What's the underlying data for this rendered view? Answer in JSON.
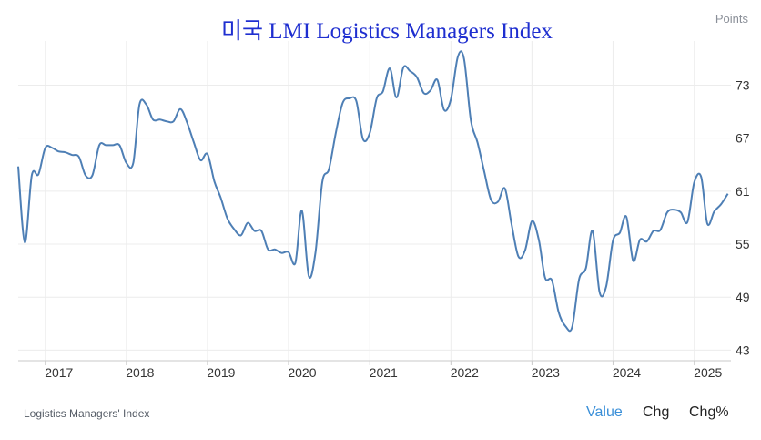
{
  "header": {
    "title": "미국 LMI Logistics Managers Index",
    "units": "Points"
  },
  "footer": {
    "source": "Logistics Managers' Index",
    "toggles": {
      "value": "Value",
      "chg": "Chg",
      "chgpct": "Chg%"
    }
  },
  "colors": {
    "line": "#4e7fb5",
    "title": "#1f2fd0",
    "active_toggle": "#3a8fd8",
    "grid": "#ececec"
  },
  "chart_data": {
    "type": "line",
    "title": "미국 LMI Logistics Managers Index",
    "ylabel": "Points",
    "ylim": [
      41.8,
      78
    ],
    "xlim": [
      "2016-09-01",
      "2025-06-15"
    ],
    "y_ticks": [
      43,
      49,
      55,
      61,
      67,
      73
    ],
    "x_ticks": [
      "2017",
      "2018",
      "2019",
      "2020",
      "2021",
      "2022",
      "2023",
      "2024",
      "2025"
    ],
    "grid": true,
    "legend": "none",
    "series": [
      {
        "values": [
          [
            "2016-09-01",
            63.8
          ],
          [
            "2016-10-01",
            55.2
          ],
          [
            "2016-11-01",
            62.8
          ],
          [
            "2016-12-01",
            62.9
          ],
          [
            "2017-01-01",
            65.9
          ],
          [
            "2017-02-01",
            65.9
          ],
          [
            "2017-03-01",
            65.5
          ],
          [
            "2017-04-01",
            65.4
          ],
          [
            "2017-05-01",
            65.1
          ],
          [
            "2017-06-01",
            64.9
          ],
          [
            "2017-07-01",
            62.8
          ],
          [
            "2017-08-01",
            62.8
          ],
          [
            "2017-09-01",
            66.2
          ],
          [
            "2017-10-01",
            66.2
          ],
          [
            "2017-11-01",
            66.2
          ],
          [
            "2017-12-01",
            66.2
          ],
          [
            "2018-01-01",
            64.2
          ],
          [
            "2018-02-01",
            64.2
          ],
          [
            "2018-03-01",
            70.8
          ],
          [
            "2018-04-01",
            70.8
          ],
          [
            "2018-05-01",
            69.1
          ],
          [
            "2018-06-01",
            69.1
          ],
          [
            "2018-07-01",
            68.9
          ],
          [
            "2018-08-01",
            68.9
          ],
          [
            "2018-09-01",
            70.3
          ],
          [
            "2018-10-01",
            68.8
          ],
          [
            "2018-11-01",
            66.5
          ],
          [
            "2018-12-01",
            64.5
          ],
          [
            "2019-01-01",
            65.2
          ],
          [
            "2019-02-01",
            62.1
          ],
          [
            "2019-03-01",
            60.3
          ],
          [
            "2019-04-01",
            57.9
          ],
          [
            "2019-05-01",
            56.7
          ],
          [
            "2019-06-01",
            56.0
          ],
          [
            "2019-07-01",
            57.4
          ],
          [
            "2019-08-01",
            56.5
          ],
          [
            "2019-09-01",
            56.5
          ],
          [
            "2019-10-01",
            54.4
          ],
          [
            "2019-11-01",
            54.4
          ],
          [
            "2019-12-01",
            54.0
          ],
          [
            "2020-01-01",
            54.1
          ],
          [
            "2020-02-01",
            52.9
          ],
          [
            "2020-03-01",
            58.8
          ],
          [
            "2020-04-01",
            51.4
          ],
          [
            "2020-05-01",
            54.0
          ],
          [
            "2020-06-01",
            62.0
          ],
          [
            "2020-07-01",
            63.5
          ],
          [
            "2020-08-01",
            67.6
          ],
          [
            "2020-09-01",
            71.0
          ],
          [
            "2020-10-01",
            71.5
          ],
          [
            "2020-11-01",
            71.2
          ],
          [
            "2020-12-01",
            66.9
          ],
          [
            "2021-01-01",
            67.6
          ],
          [
            "2021-02-01",
            71.5
          ],
          [
            "2021-03-01",
            72.3
          ],
          [
            "2021-04-01",
            74.9
          ],
          [
            "2021-05-01",
            71.6
          ],
          [
            "2021-06-01",
            75.0
          ],
          [
            "2021-07-01",
            74.6
          ],
          [
            "2021-08-01",
            73.9
          ],
          [
            "2021-09-01",
            72.1
          ],
          [
            "2021-10-01",
            72.4
          ],
          [
            "2021-11-01",
            73.6
          ],
          [
            "2021-12-01",
            70.2
          ],
          [
            "2022-01-01",
            71.4
          ],
          [
            "2022-02-01",
            76.2
          ],
          [
            "2022-03-01",
            76.0
          ],
          [
            "2022-04-01",
            69.0
          ],
          [
            "2022-05-01",
            66.5
          ],
          [
            "2022-06-01",
            63.1
          ],
          [
            "2022-07-01",
            60.0
          ],
          [
            "2022-08-01",
            59.8
          ],
          [
            "2022-09-01",
            61.3
          ],
          [
            "2022-10-01",
            57.3
          ],
          [
            "2022-11-01",
            53.6
          ],
          [
            "2022-12-01",
            54.3
          ],
          [
            "2023-01-01",
            57.6
          ],
          [
            "2023-02-01",
            55.5
          ],
          [
            "2023-03-01",
            51.2
          ],
          [
            "2023-04-01",
            50.9
          ],
          [
            "2023-05-01",
            47.3
          ],
          [
            "2023-06-01",
            45.7
          ],
          [
            "2023-07-01",
            45.6
          ],
          [
            "2023-08-01",
            51.0
          ],
          [
            "2023-09-01",
            52.3
          ],
          [
            "2023-10-01",
            56.5
          ],
          [
            "2023-11-01",
            49.6
          ],
          [
            "2023-12-01",
            50.2
          ],
          [
            "2024-01-01",
            55.4
          ],
          [
            "2024-02-01",
            56.3
          ],
          [
            "2024-03-01",
            58.1
          ],
          [
            "2024-04-01",
            53.1
          ],
          [
            "2024-05-01",
            55.5
          ],
          [
            "2024-06-01",
            55.3
          ],
          [
            "2024-07-01",
            56.5
          ],
          [
            "2024-08-01",
            56.6
          ],
          [
            "2024-09-01",
            58.6
          ],
          [
            "2024-10-01",
            58.9
          ],
          [
            "2024-11-01",
            58.6
          ],
          [
            "2024-12-01",
            57.5
          ],
          [
            "2025-01-01",
            62.0
          ],
          [
            "2025-02-01",
            62.6
          ],
          [
            "2025-03-01",
            57.3
          ],
          [
            "2025-04-01",
            58.7
          ],
          [
            "2025-05-01",
            59.5
          ],
          [
            "2025-06-01",
            60.7
          ]
        ]
      }
    ]
  }
}
